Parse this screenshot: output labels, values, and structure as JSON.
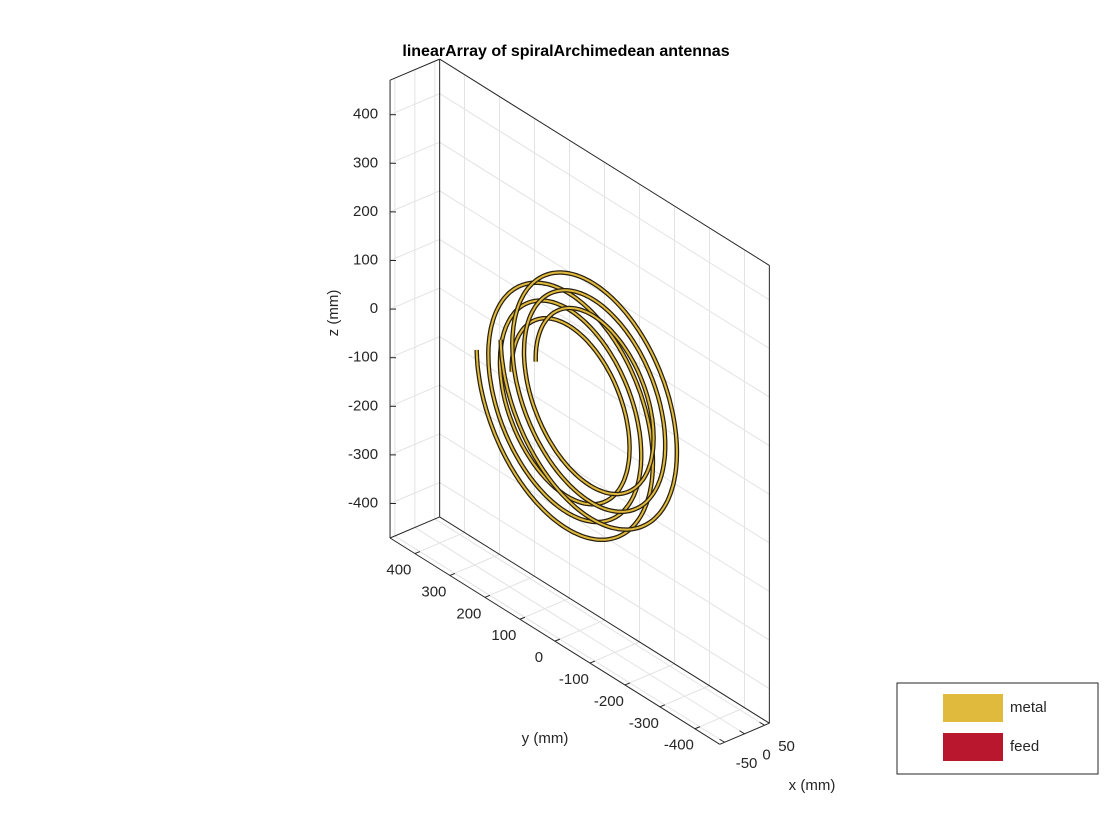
{
  "chart_data": {
    "type": "3d",
    "title": "linearArray of spiralArchimedean antennas",
    "x_label": "x (mm)",
    "y_label": "y (mm)",
    "z_label": "z (mm)",
    "xlim": [
      -62,
      62
    ],
    "ylim": [
      -471,
      471
    ],
    "zlim": [
      -471,
      471
    ],
    "xticks": [
      -50,
      0,
      50
    ],
    "yticks": [
      -400,
      -300,
      -200,
      -100,
      0,
      100,
      200,
      300,
      400
    ],
    "zticks": [
      -400,
      -300,
      -200,
      -100,
      0,
      100,
      200,
      300,
      400
    ],
    "grid": true,
    "legend": [
      {
        "name": "metal",
        "color": "#dfba3c"
      },
      {
        "name": "feed",
        "color": "#b8172e"
      }
    ]
  }
}
